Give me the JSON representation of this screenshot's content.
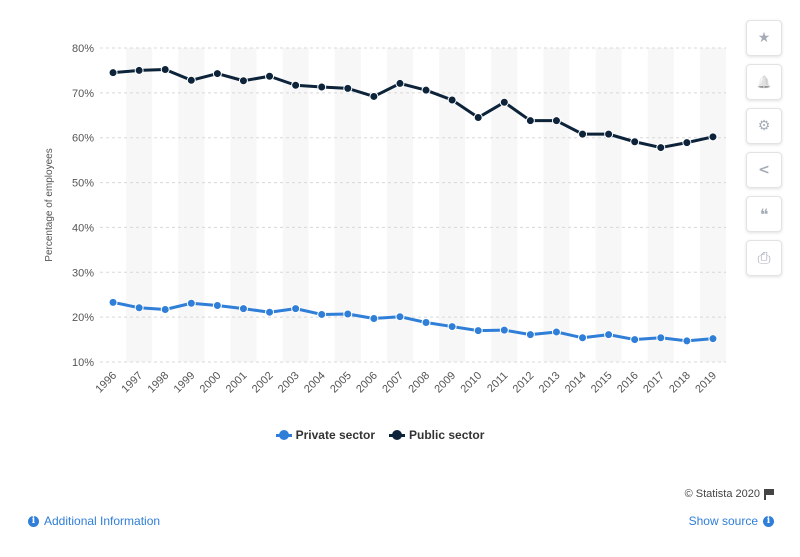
{
  "chart_data": {
    "type": "line",
    "title": "",
    "xlabel": "",
    "ylabel": "Percentage of employees",
    "categories": [
      "1996",
      "1997",
      "1998",
      "1999",
      "2000",
      "2001",
      "2002",
      "2003",
      "2004",
      "2005",
      "2006",
      "2007",
      "2008",
      "2009",
      "2010",
      "2011",
      "2012",
      "2013",
      "2014",
      "2015",
      "2016",
      "2017",
      "2018",
      "2019"
    ],
    "ylim": [
      10,
      80
    ],
    "y_ticks": [
      10,
      20,
      30,
      40,
      50,
      60,
      70,
      80
    ],
    "y_tick_labels": [
      "10%",
      "20%",
      "30%",
      "40%",
      "50%",
      "60%",
      "70%",
      "80%"
    ],
    "grid": "horizontal dashed",
    "legend_position": "bottom-center",
    "series": [
      {
        "name": "Private sector",
        "color": "#2f7ed8",
        "values": [
          23.3,
          22.1,
          21.7,
          23.1,
          22.6,
          21.9,
          21.1,
          21.9,
          20.6,
          20.7,
          19.7,
          20.1,
          18.8,
          17.9,
          17.0,
          17.1,
          16.1,
          16.7,
          15.4,
          16.1,
          15.0,
          15.4,
          14.7,
          15.2
        ]
      },
      {
        "name": "Public sector",
        "color": "#0d233a",
        "values": [
          74.5,
          75.0,
          75.2,
          72.8,
          74.3,
          72.7,
          73.7,
          71.7,
          71.3,
          71.0,
          69.2,
          72.1,
          70.6,
          68.4,
          64.5,
          67.9,
          63.8,
          63.8,
          60.8,
          60.8,
          59.1,
          57.8,
          58.9,
          60.2
        ]
      }
    ]
  },
  "toolbar": {
    "icons": [
      "star-icon",
      "bell-icon",
      "gear-icon",
      "share-icon",
      "quote-icon",
      "print-icon"
    ],
    "star": "★",
    "bell": "🔔",
    "gear": "⚙",
    "share": "<",
    "quote": "❝",
    "print": "⎙"
  },
  "credit": {
    "text": "© Statista 2020"
  },
  "footer": {
    "additional_info": "Additional Information",
    "show_source": "Show source",
    "info_glyph": "i"
  }
}
